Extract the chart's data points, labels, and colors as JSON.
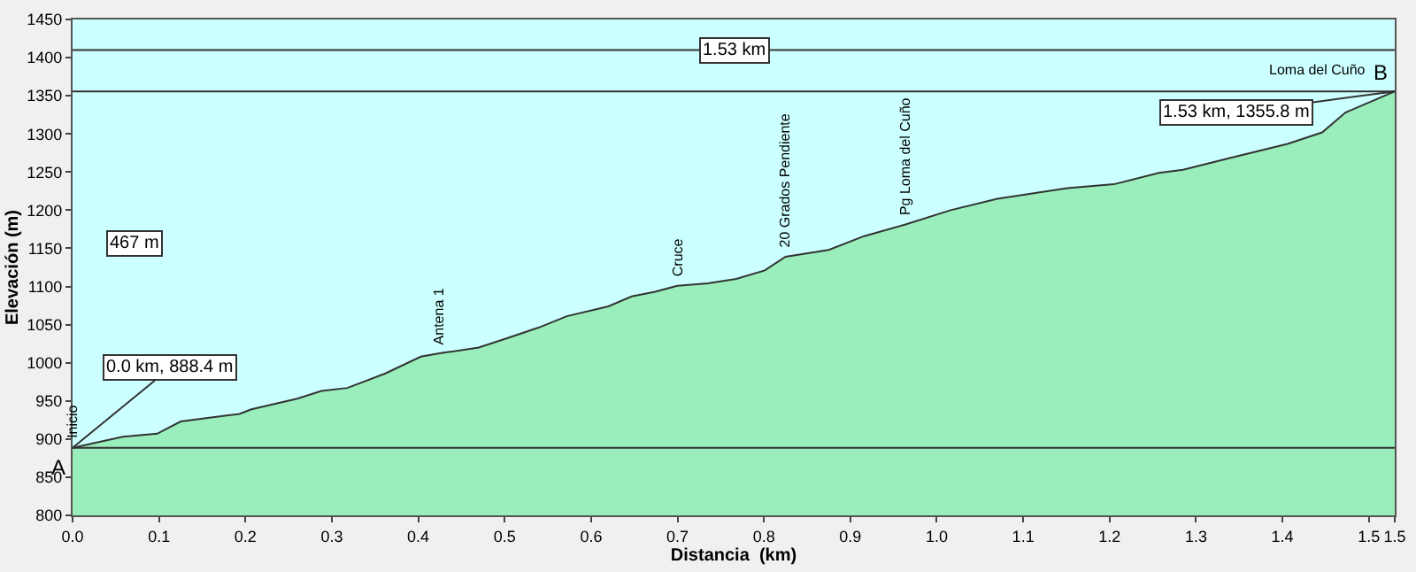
{
  "chart_data": {
    "type": "area",
    "xlabel": "Distancia  (km)",
    "ylabel": "Elevación (m)",
    "x": [
      0,
      0.058,
      0.098,
      0.125,
      0.193,
      0.207,
      0.26,
      0.288,
      0.318,
      0.362,
      0.403,
      0.423,
      0.47,
      0.505,
      0.539,
      0.572,
      0.62,
      0.647,
      0.674,
      0.7,
      0.735,
      0.768,
      0.801,
      0.825,
      0.875,
      0.916,
      0.963,
      1.016,
      1.07,
      1.151,
      1.205,
      1.257,
      1.285,
      1.338,
      1.406,
      1.446,
      1.473,
      1.53
    ],
    "series": [
      {
        "color": "#99eebb",
        "values": [
          888.4,
          903,
          907,
          923,
          933,
          939,
          953,
          963,
          967,
          986,
          1008,
          1012,
          1020,
          1033,
          1046,
          1061,
          1074,
          1087,
          1093,
          1101,
          1104,
          1110,
          1121,
          1139,
          1148,
          1166,
          1181,
          1200,
          1215,
          1229,
          1234,
          1249,
          1253,
          1268,
          1287,
          1302,
          1328,
          1355.8
        ]
      }
    ],
    "xlim": [
      0,
      1.53
    ],
    "xticks": [
      {
        "value": 0,
        "label": "0.0"
      },
      0.1,
      0.2,
      0.3,
      0.4,
      0.5,
      0.6,
      0.7,
      0.8,
      0.9,
      {
        "value": 1,
        "label": "1.0"
      },
      1.1,
      1.2,
      1.3,
      1.4,
      1.5,
      {
        "value": 1.53,
        "label": "1.5"
      }
    ],
    "ylim": [
      800,
      1450
    ],
    "yticks": [
      800,
      850,
      900,
      950,
      1000,
      1050,
      1100,
      1150,
      1200,
      1250,
      1300,
      1350,
      1400,
      1450
    ],
    "grid": false,
    "ref_lines": [
      {
        "axis": "y",
        "value": 1410,
        "label": "1.53 km",
        "color": "#333333"
      },
      {
        "axis": "y",
        "value": 1355.8,
        "color": "#333333"
      },
      {
        "axis": "y",
        "value": 888.4,
        "color": "#333333"
      }
    ],
    "annotations": [
      {
        "text": "Inicio",
        "x": 0,
        "y": 888.4
      },
      {
        "text": "Antena 1",
        "x": 0.423,
        "y": 1012
      },
      {
        "text": "Cruce",
        "x": 0.7,
        "y": 1101
      },
      {
        "text": "20 Grados Pendiente",
        "x": 0.825,
        "y": 1139
      },
      {
        "text": "Pg Loma del Cuño",
        "x": 0.963,
        "y": 1181
      },
      {
        "text": "Loma del Cuño",
        "x": 1.53,
        "y": 1355.8
      },
      {
        "text": "A",
        "x": 0,
        "y": 888.4
      },
      {
        "text": "B",
        "x": 1.53,
        "y": 1355.8
      },
      {
        "text": "0.0 km, 888.4 m",
        "x": 0,
        "y": 888.4
      },
      {
        "text": "1.53 km, 1355.8 m",
        "x": 1.53,
        "y": 1355.8
      },
      "467 m"
    ]
  }
}
